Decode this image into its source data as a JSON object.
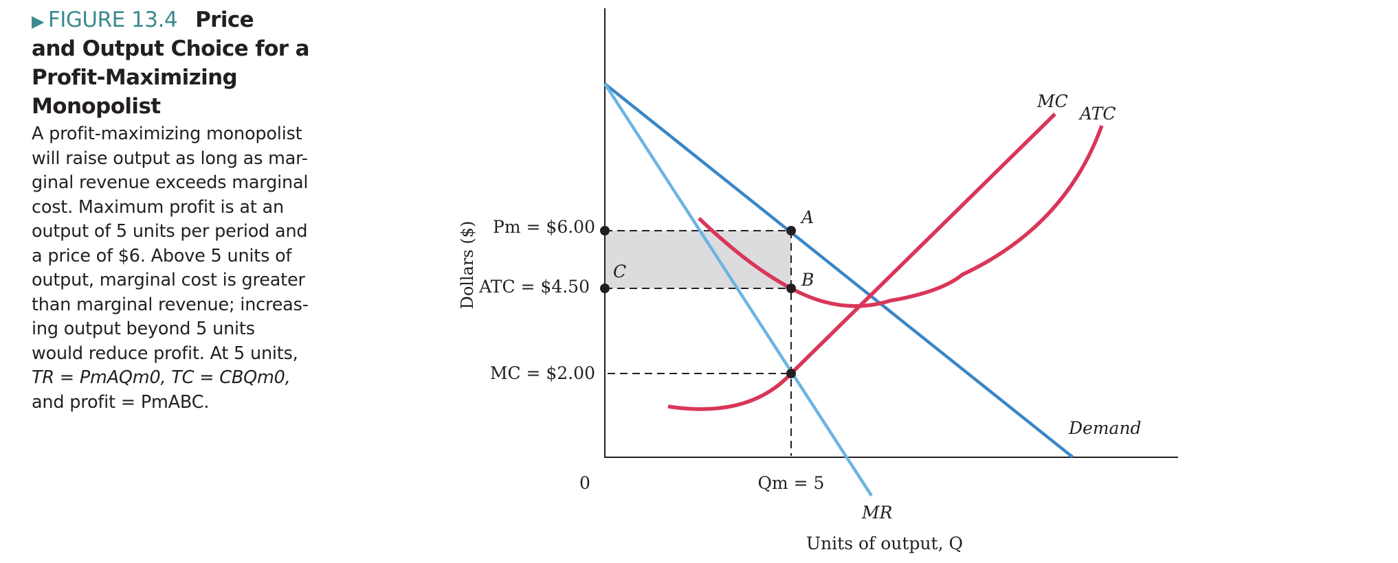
{
  "caption": {
    "figure_label": "FIGURE 13.4",
    "title_first": "Price",
    "title_rest": "and Output Choice for a Profit-Maximizing Monopolist",
    "body_lines": [
      "A profit-maximizing monopolist",
      "will raise output as long as mar-",
      "ginal revenue exceeds marginal",
      "cost. Maximum profit is at an",
      "output of 5 units per period and",
      "a price of $6. Above 5 units of",
      "output, marginal cost is greater",
      "than marginal revenue; increas-",
      "ing output beyond 5 units",
      "would reduce profit. At 5 units,",
      "TR = PmAQm0, TC = CBQm0,",
      "and profit = PmABC."
    ]
  },
  "graph": {
    "y_axis_label": "Dollars ($)",
    "x_axis_label": "Units of output, Q",
    "origin_label": "0",
    "price_labels": {
      "pm": "Pm = $6.00",
      "atc": "ATC = $4.50",
      "mc": "MC = $2.00"
    },
    "qm_label": "Qm = 5",
    "point_labels": {
      "a": "A",
      "b": "B",
      "c": "C"
    },
    "curve_labels": {
      "mc": "MC",
      "atc": "ATC",
      "demand": "Demand",
      "mr": "MR"
    },
    "colors": {
      "demand": "#3a86c8",
      "mr": "#6cb4e2",
      "cost_curves": "#d9365a",
      "profit_area": "#dcdcde",
      "axes": "#231f20"
    }
  }
}
